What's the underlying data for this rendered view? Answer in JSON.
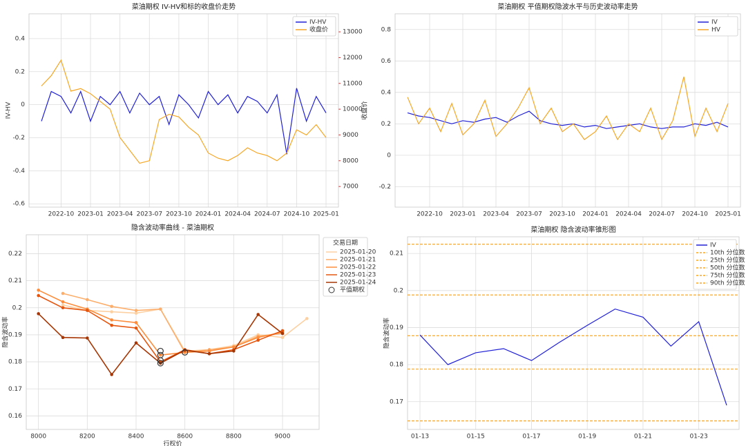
{
  "chart_data": [
    {
      "type": "line",
      "title": "菜油期权 IV-HV和标的收盘价走势",
      "ylabel": "IV-HV",
      "y2label": "收盘价",
      "legend": "upper right",
      "x": [
        "2022-08",
        "2022-09",
        "2022-10",
        "2022-11",
        "2022-12",
        "2023-01",
        "2023-02",
        "2023-03",
        "2023-04",
        "2023-05",
        "2023-06",
        "2023-07",
        "2023-08",
        "2023-09",
        "2023-10",
        "2023-11",
        "2023-12",
        "2024-01",
        "2024-02",
        "2024-03",
        "2024-04",
        "2024-05",
        "2024-06",
        "2024-07",
        "2024-08",
        "2024-09",
        "2024-10",
        "2024-11",
        "2024-12",
        "2025-01"
      ],
      "xticks": [
        "2022-10",
        "2023-01",
        "2023-04",
        "2023-07",
        "2023-10",
        "2024-01",
        "2024-04",
        "2024-07",
        "2024-10",
        "2025-01"
      ],
      "ylim": [
        -0.62,
        0.55
      ],
      "yticks": [
        -0.6,
        -0.4,
        -0.2,
        0.0,
        0.2,
        0.4
      ],
      "y2lim": [
        6200,
        13700
      ],
      "y2ticks": [
        7000,
        8000,
        9000,
        10000,
        11000,
        12000,
        13000
      ],
      "y2color": "#d62728",
      "series": [
        {
          "name": "IV-HV",
          "color": "#1f1fd6",
          "values": [
            -0.1,
            0.08,
            0.05,
            -0.05,
            0.08,
            -0.1,
            0.05,
            0.0,
            0.08,
            -0.05,
            0.07,
            0.0,
            0.05,
            -0.12,
            0.06,
            0.0,
            -0.08,
            0.08,
            0.0,
            0.06,
            -0.05,
            0.05,
            0.02,
            -0.05,
            0.06,
            -0.3,
            0.1,
            -0.1,
            0.05,
            -0.05
          ]
        },
        {
          "name": "收盘价",
          "color": "#f5a623",
          "axis": "y2",
          "values": [
            10900,
            11300,
            11900,
            10700,
            10800,
            10600,
            10300,
            10000,
            8900,
            8400,
            7900,
            8000,
            9600,
            9800,
            9700,
            9300,
            9000,
            8300,
            8100,
            8000,
            8200,
            8500,
            8300,
            8200,
            8000,
            8300,
            9200,
            9000,
            9400,
            8900
          ]
        }
      ]
    },
    {
      "type": "line",
      "title": "菜油期权 平值期权隐波水平与历史波动率走势",
      "legend": "upper right",
      "x": [
        "2022-08",
        "2022-09",
        "2022-10",
        "2022-11",
        "2022-12",
        "2023-01",
        "2023-02",
        "2023-03",
        "2023-04",
        "2023-05",
        "2023-06",
        "2023-07",
        "2023-08",
        "2023-09",
        "2023-10",
        "2023-11",
        "2023-12",
        "2024-01",
        "2024-02",
        "2024-03",
        "2024-04",
        "2024-05",
        "2024-06",
        "2024-07",
        "2024-08",
        "2024-09",
        "2024-10",
        "2024-11",
        "2024-12",
        "2025-01"
      ],
      "xticks": [
        "2022-10",
        "2023-01",
        "2023-04",
        "2023-07",
        "2023-10",
        "2024-01",
        "2024-04",
        "2024-07",
        "2024-10",
        "2025-01"
      ],
      "ylim": [
        -0.33,
        0.9
      ],
      "yticks": [
        -0.2,
        0.0,
        0.2,
        0.4,
        0.6,
        0.8
      ],
      "series": [
        {
          "name": "IV",
          "color": "#1f1fd6",
          "values": [
            0.27,
            0.25,
            0.24,
            0.22,
            0.2,
            0.22,
            0.21,
            0.23,
            0.24,
            0.21,
            0.25,
            0.28,
            0.22,
            0.2,
            0.19,
            0.2,
            0.18,
            0.19,
            0.17,
            0.18,
            0.19,
            0.2,
            0.18,
            0.17,
            0.18,
            0.18,
            0.2,
            0.19,
            0.21,
            0.18
          ]
        },
        {
          "name": "HV",
          "color": "#f5a623",
          "values": [
            0.37,
            0.2,
            0.3,
            0.15,
            0.33,
            0.13,
            0.2,
            0.35,
            0.12,
            0.2,
            0.3,
            0.43,
            0.2,
            0.3,
            0.15,
            0.2,
            0.1,
            0.15,
            0.25,
            0.1,
            0.2,
            0.15,
            0.3,
            0.1,
            0.22,
            0.5,
            0.12,
            0.3,
            0.15,
            0.33
          ]
        }
      ]
    },
    {
      "type": "line",
      "title": "隐含波动率曲线 - 菜油期权",
      "xlabel": "行权价",
      "ylabel": "隐含波动率",
      "legend": "outside right",
      "legend_title": "交易日期",
      "x": [
        8000,
        8100,
        8200,
        8300,
        8400,
        8500,
        8600,
        8700,
        8800,
        8900,
        9000,
        9100
      ],
      "xlim": [
        7950,
        9150
      ],
      "xticks": [
        8000,
        8200,
        8400,
        8600,
        8800,
        9000
      ],
      "ylim": [
        0.155,
        0.227
      ],
      "yticks": [
        0.16,
        0.17,
        0.18,
        0.19,
        0.2,
        0.21,
        0.22
      ],
      "series": [
        {
          "name": "2025-01-20",
          "color": "#fdd0a2",
          "values": [
            null,
            0.201,
            0.199,
            0.1985,
            0.198,
            0.1995,
            0.184,
            0.1845,
            0.186,
            0.19,
            0.189,
            0.196
          ]
        },
        {
          "name": "2025-01-21",
          "color": "#fdae6b",
          "values": [
            null,
            0.2053,
            0.203,
            0.2005,
            0.199,
            0.1995,
            0.1835,
            0.1845,
            0.1855,
            0.1895,
            0.1905,
            null
          ]
        },
        {
          "name": "2025-01-22",
          "color": "#fd8d3c",
          "values": [
            0.2065,
            0.2022,
            0.1995,
            0.1955,
            0.1945,
            0.1825,
            0.1835,
            0.184,
            0.1855,
            0.189,
            0.191,
            null
          ]
        },
        {
          "name": "2025-01-23",
          "color": "#e6550d",
          "values": [
            0.2045,
            0.2,
            0.199,
            0.1935,
            0.1925,
            0.18,
            0.1845,
            0.183,
            0.1845,
            0.188,
            0.1915,
            null
          ]
        },
        {
          "name": "2025-01-24",
          "color": "#a63603",
          "values": [
            0.1978,
            0.189,
            0.1888,
            0.1753,
            0.187,
            0.1795,
            0.1843,
            0.183,
            0.184,
            0.1975,
            0.1905,
            null
          ]
        }
      ],
      "atm": {
        "name": "平值期权",
        "x": [
          8500,
          8500,
          8500,
          8500,
          8600
        ],
        "values": [
          0.184,
          0.1825,
          0.1805,
          0.1795,
          0.1835
        ]
      }
    },
    {
      "type": "line",
      "title": "菜油期权 隐含波动率锥形图",
      "ylabel": "隐含波动率",
      "legend": "upper right",
      "categories": [
        "01-13",
        null,
        "01-15",
        null,
        "01-17",
        null,
        "01-19",
        null,
        "01-21",
        null,
        "01-23",
        null
      ],
      "ylim": [
        0.1625,
        0.2145
      ],
      "yticks": [
        0.17,
        0.18,
        0.19,
        0.2,
        0.21
      ],
      "series": [
        {
          "name": "IV",
          "color": "#1f1fd6",
          "values": [
            0.188,
            0.18,
            0.1832,
            0.1843,
            0.1811,
            0.186,
            0.1906,
            0.195,
            0.1928,
            0.185,
            0.1916,
            0.169
          ]
        }
      ],
      "percentiles": {
        "color": "#f5a623",
        "lines": [
          {
            "name": "10th 分位数",
            "value": 0.1648
          },
          {
            "name": "25th 分位数",
            "value": 0.1788
          },
          {
            "name": "50th 分位数",
            "value": 0.1878
          },
          {
            "name": "75th 分位数",
            "value": 0.1988
          },
          {
            "name": "90th 分位数",
            "value": 0.2125
          }
        ]
      }
    }
  ]
}
